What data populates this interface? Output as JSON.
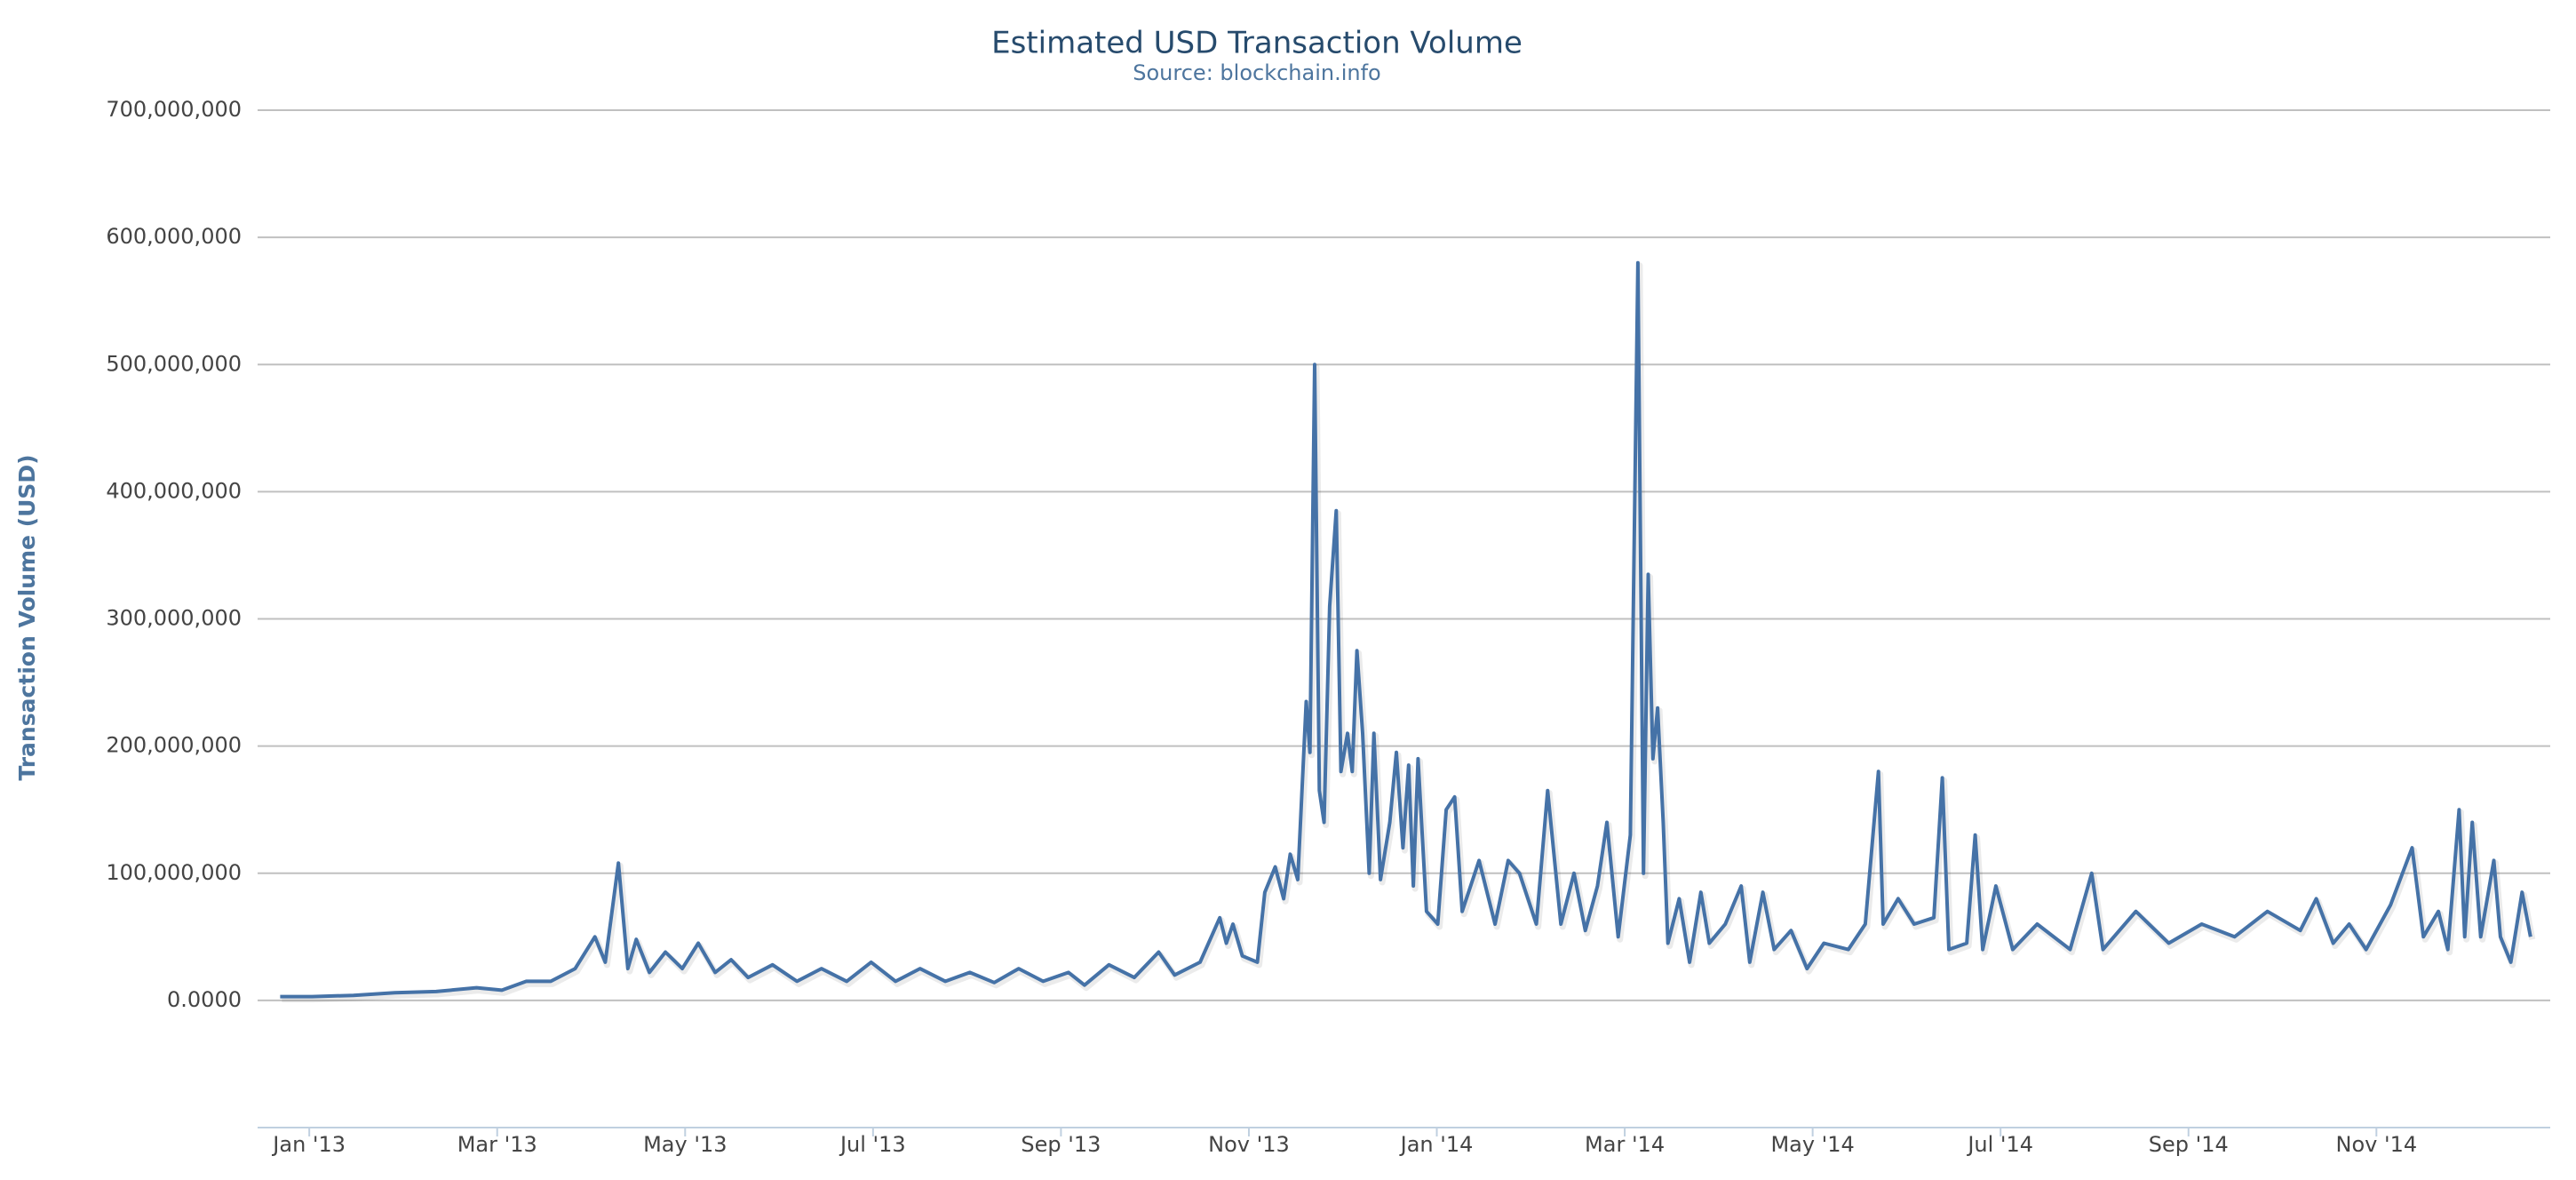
{
  "chart_data": {
    "type": "line",
    "title": "Estimated USD Transaction Volume",
    "subtitle": "Source: blockchain.info",
    "y_label": "Transaction Volume (USD)",
    "grid": true,
    "xlim": [
      -0.55,
      23.85
    ],
    "xticks": [
      {
        "value": 0,
        "label": "Jan '13"
      },
      {
        "value": 2,
        "label": "Mar '13"
      },
      {
        "value": 4,
        "label": "May '13"
      },
      {
        "value": 6,
        "label": "Jul '13"
      },
      {
        "value": 8,
        "label": "Sep '13"
      },
      {
        "value": 10,
        "label": "Nov '13"
      },
      {
        "value": 12,
        "label": "Jan '14"
      },
      {
        "value": 14,
        "label": "Mar '14"
      },
      {
        "value": 16,
        "label": "May '14"
      },
      {
        "value": 18,
        "label": "Jul '14"
      },
      {
        "value": 20,
        "label": "Sep '14"
      },
      {
        "value": 22,
        "label": "Nov '14"
      }
    ],
    "ylim": [
      -100000000,
      700000000
    ],
    "yticks": [
      {
        "value": 0,
        "label": "0.0000"
      },
      {
        "value": 100000000,
        "label": "100,000,000"
      },
      {
        "value": 200000000,
        "label": "200,000,000"
      },
      {
        "value": 300000000,
        "label": "300,000,000"
      },
      {
        "value": 400000000,
        "label": "400,000,000"
      },
      {
        "value": 500000000,
        "label": "500,000,000"
      },
      {
        "value": 600000000,
        "label": "600,000,000"
      },
      {
        "value": 700000000,
        "label": "700,000,000"
      }
    ],
    "x": [
      -0.31,
      0.03,
      0.47,
      0.91,
      1.35,
      1.78,
      2.05,
      2.31,
      2.57,
      2.83,
      3.04,
      3.15,
      3.29,
      3.39,
      3.48,
      3.62,
      3.79,
      3.97,
      4.14,
      4.32,
      4.49,
      4.67,
      4.93,
      5.19,
      5.45,
      5.72,
      5.98,
      6.24,
      6.5,
      6.77,
      7.03,
      7.29,
      7.55,
      7.81,
      8.08,
      8.25,
      8.51,
      8.78,
      9.04,
      9.21,
      9.48,
      9.69,
      9.76,
      9.83,
      9.93,
      10.09,
      10.17,
      10.28,
      10.37,
      10.44,
      10.52,
      10.61,
      10.65,
      10.7,
      10.75,
      10.8,
      10.86,
      10.93,
      10.98,
      11.05,
      11.1,
      11.15,
      11.21,
      11.28,
      11.33,
      11.4,
      11.5,
      11.57,
      11.64,
      11.7,
      11.75,
      11.8,
      11.89,
      12.01,
      12.1,
      12.19,
      12.27,
      12.45,
      12.62,
      12.76,
      12.88,
      13.06,
      13.18,
      13.32,
      13.46,
      13.58,
      13.71,
      13.81,
      13.93,
      14.06,
      14.14,
      14.2,
      14.25,
      14.3,
      14.35,
      14.41,
      14.46,
      14.58,
      14.69,
      14.81,
      14.9,
      15.07,
      15.24,
      15.33,
      15.47,
      15.59,
      15.77,
      15.94,
      16.12,
      16.38,
      16.56,
      16.7,
      16.75,
      16.91,
      17.08,
      17.29,
      17.38,
      17.45,
      17.64,
      17.73,
      17.81,
      17.95,
      18.13,
      18.39,
      18.74,
      18.97,
      19.09,
      19.44,
      19.79,
      20.14,
      20.49,
      20.84,
      21.19,
      21.36,
      21.54,
      21.71,
      21.89,
      22.15,
      22.38,
      22.5,
      22.66,
      22.76,
      22.88,
      22.94,
      23.02,
      23.11,
      23.25,
      23.32,
      23.43,
      23.55,
      23.64
    ],
    "series": [
      {
        "name": "Transaction Volume",
        "color": "#4572a7",
        "values": [
          3000000,
          3000000,
          4000000,
          6000000,
          7000000,
          10000000,
          8000000,
          15000000,
          15000000,
          25000000,
          50000000,
          30000000,
          108000000,
          25000000,
          48000000,
          22000000,
          38000000,
          25000000,
          45000000,
          22000000,
          32000000,
          18000000,
          28000000,
          15000000,
          25000000,
          15000000,
          30000000,
          15000000,
          25000000,
          15000000,
          22000000,
          14000000,
          25000000,
          15000000,
          22000000,
          12000000,
          28000000,
          18000000,
          38000000,
          20000000,
          30000000,
          65000000,
          45000000,
          60000000,
          35000000,
          30000000,
          85000000,
          105000000,
          80000000,
          115000000,
          95000000,
          235000000,
          195000000,
          500000000,
          165000000,
          140000000,
          310000000,
          385000000,
          180000000,
          210000000,
          180000000,
          275000000,
          210000000,
          100000000,
          210000000,
          95000000,
          140000000,
          195000000,
          120000000,
          185000000,
          90000000,
          190000000,
          70000000,
          60000000,
          150000000,
          160000000,
          70000000,
          110000000,
          60000000,
          110000000,
          100000000,
          60000000,
          165000000,
          60000000,
          100000000,
          55000000,
          90000000,
          140000000,
          50000000,
          130000000,
          580000000,
          100000000,
          335000000,
          190000000,
          230000000,
          140000000,
          45000000,
          80000000,
          30000000,
          85000000,
          45000000,
          60000000,
          90000000,
          30000000,
          85000000,
          40000000,
          55000000,
          25000000,
          45000000,
          40000000,
          60000000,
          180000000,
          60000000,
          80000000,
          60000000,
          65000000,
          175000000,
          40000000,
          45000000,
          130000000,
          40000000,
          90000000,
          40000000,
          60000000,
          40000000,
          100000000,
          40000000,
          70000000,
          45000000,
          60000000,
          50000000,
          70000000,
          55000000,
          80000000,
          45000000,
          60000000,
          40000000,
          75000000,
          120000000,
          50000000,
          70000000,
          40000000,
          150000000,
          50000000,
          140000000,
          50000000,
          110000000,
          50000000,
          30000000,
          85000000,
          50000000
        ]
      }
    ]
  }
}
